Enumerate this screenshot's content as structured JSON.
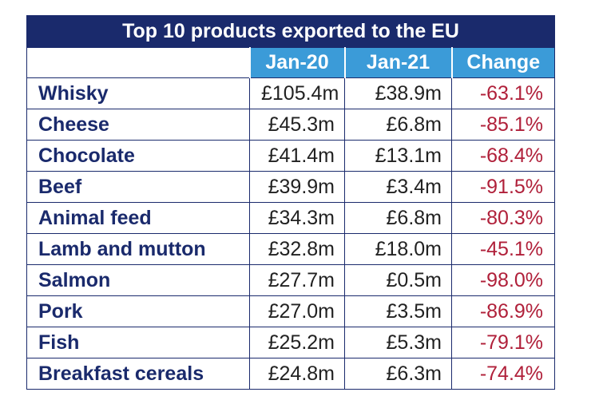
{
  "table": {
    "title": "Top 10 products exported to the EU",
    "columns": [
      "",
      "Jan-20",
      "Jan-21",
      "Change"
    ],
    "rows": [
      {
        "product": "Whisky",
        "jan20": "£105.4m",
        "jan21": "£38.9m",
        "change": "-63.1%"
      },
      {
        "product": "Cheese",
        "jan20": "£45.3m",
        "jan21": "£6.8m",
        "change": "-85.1%"
      },
      {
        "product": "Chocolate",
        "jan20": "£41.4m",
        "jan21": "£13.1m",
        "change": "-68.4%"
      },
      {
        "product": "Beef",
        "jan20": "£39.9m",
        "jan21": "£3.4m",
        "change": "-91.5%"
      },
      {
        "product": "Animal feed",
        "jan20": "£34.3m",
        "jan21": "£6.8m",
        "change": "-80.3%"
      },
      {
        "product": "Lamb and mutton",
        "jan20": "£32.8m",
        "jan21": "£18.0m",
        "change": "-45.1%"
      },
      {
        "product": "Salmon",
        "jan20": "£27.7m",
        "jan21": "£0.5m",
        "change": "-98.0%"
      },
      {
        "product": "Pork",
        "jan20": "£27.0m",
        "jan21": "£3.5m",
        "change": "-86.9%"
      },
      {
        "product": "Fish",
        "jan20": "£25.2m",
        "jan21": "£5.3m",
        "change": "-79.1%"
      },
      {
        "product": "Breakfast cereals",
        "jan20": "£24.8m",
        "jan21": "£6.3m",
        "change": "-74.4%"
      }
    ]
  },
  "colors": {
    "title_bg": "#1a2a6c",
    "header_bg": "#3b9bd8",
    "product_text": "#1a2a6c",
    "change_text": "#b0203a"
  }
}
